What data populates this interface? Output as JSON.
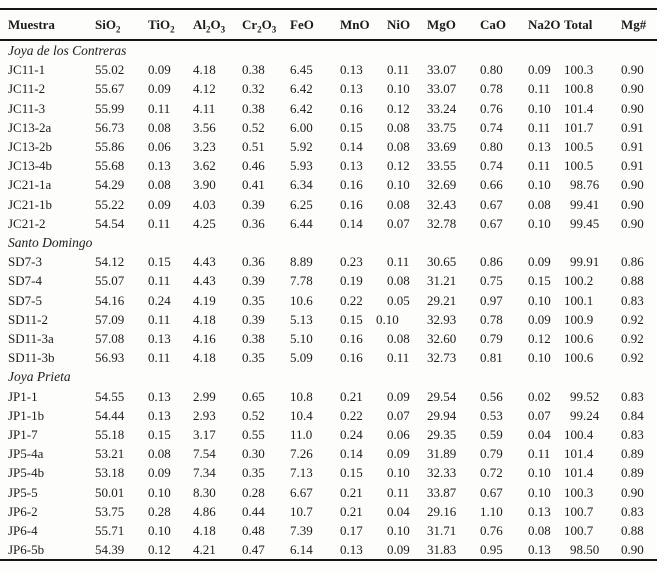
{
  "table": {
    "columns": [
      "Muestra",
      "SiO~2~",
      "TiO~2~",
      "Al~2~O~3~",
      "Cr~2~O~3~",
      "FeO",
      "MnO",
      "NiO",
      "MgO",
      "CaO",
      "Na2O",
      "Total",
      "Mg#"
    ],
    "groups": [
      {
        "label": "Joya de los Contreras",
        "rows": [
          {
            "id": "JC11-1",
            "values": [
              "55.02",
              "0.09",
              "4.18",
              "0.38",
              "6.45",
              "0.13",
              "0.11",
              "33.07",
              "0.80",
              "0.09",
              "100.3",
              "0.90"
            ]
          },
          {
            "id": "JC11-2",
            "values": [
              "55.67",
              "0.09",
              "4.12",
              "0.32",
              "6.42",
              "0.13",
              "0.10",
              "33.07",
              "0.78",
              "0.11",
              "100.8",
              "0.90"
            ]
          },
          {
            "id": "JC11-3",
            "values": [
              "55.99",
              "0.11",
              "4.11",
              "0.38",
              "6.42",
              "0.16",
              "0.12",
              "33.24",
              "0.76",
              "0.10",
              "101.4",
              "0.90"
            ]
          },
          {
            "id": "JC13-2a",
            "values": [
              "56.73",
              "0.08",
              "3.56",
              "0.52",
              "6.00",
              "0.15",
              "0.08",
              "33.75",
              "0.74",
              "0.11",
              "101.7",
              "0.91"
            ]
          },
          {
            "id": "JC13-2b",
            "values": [
              "55.86",
              "0.06",
              "3.23",
              "0.51",
              "5.92",
              "0.14",
              "0.08",
              "33.69",
              "0.80",
              "0.13",
              "100.5",
              "0.91"
            ]
          },
          {
            "id": "JC13-4b",
            "values": [
              "55.68",
              "0.13",
              "3.62",
              "0.46",
              "5.93",
              "0.13",
              "0.12",
              "33.55",
              "0.74",
              "0.11",
              "100.5",
              "0.91"
            ]
          },
          {
            "id": "JC21-1a",
            "values": [
              "54.29",
              "0.08",
              "3.90",
              "0.41",
              "6.34",
              "0.16",
              "0.10",
              "32.69",
              "0.66",
              "0.10",
              "98.76",
              "0.90"
            ]
          },
          {
            "id": "JC21-1b",
            "values": [
              "55.22",
              "0.09",
              "4.03",
              "0.39",
              "6.25",
              "0.16",
              "0.08",
              "32.43",
              "0.67",
              "0.08",
              "99.41",
              "0.90"
            ]
          },
          {
            "id": "JC21-2",
            "values": [
              "54.54",
              "0.11",
              "4.25",
              "0.36",
              "6.44",
              "0.14",
              "0.07",
              "32.78",
              "0.67",
              "0.10",
              "99.45",
              "0.90"
            ]
          }
        ]
      },
      {
        "label": "Santo Domingo",
        "rows": [
          {
            "id": "SD7-3",
            "values": [
              "54.12",
              "0.15",
              "4.43",
              "0.36",
              "8.89",
              "0.23",
              "0.11",
              "30.65",
              "0.86",
              "0.09",
              "99.91",
              "0.86"
            ]
          },
          {
            "id": "SD7-4",
            "values": [
              "55.07",
              "0.11",
              "4.43",
              "0.39",
              "7.78",
              "0.19",
              "0.08",
              "31.21",
              "0.75",
              "0.15",
              "100.2",
              "0.88"
            ]
          },
          {
            "id": "SD7-5",
            "values": [
              "54.16",
              "0.24",
              "4.19",
              "0.35",
              "10.6",
              "0.22",
              "0.05",
              "29.21",
              "0.97",
              "0.10",
              "100.1",
              "0.83"
            ]
          },
          {
            "id": "SD11-2",
            "values": [
              "57.09",
              "0.11",
              "4.18",
              "0.39",
              "5.13",
              "0.15",
              "0.10",
              "32.93",
              "0.78",
              "0.09",
              "100.9",
              "0.92"
            ]
          },
          {
            "id": "SD11-3a",
            "values": [
              "57.08",
              "0.13",
              "4.16",
              "0.38",
              "5.10",
              "0.16",
              "0.08",
              "32.60",
              "0.79",
              "0.12",
              "100.6",
              "0.92"
            ]
          },
          {
            "id": "SD11-3b",
            "values": [
              "56.93",
              "0.11",
              "4.18",
              "0.35",
              "5.09",
              "0.16",
              "0.11",
              "32.73",
              "0.81",
              "0.10",
              "100.6",
              "0.92"
            ]
          }
        ]
      },
      {
        "label": "Joya Prieta",
        "rows": [
          {
            "id": "JP1-1",
            "values": [
              "54.55",
              "0.13",
              "2.99",
              "0.65",
              "10.8",
              "0.21",
              "0.09",
              "29.54",
              "0.56",
              "0.02",
              "99.52",
              "0.83"
            ]
          },
          {
            "id": "JP1-1b",
            "values": [
              "54.44",
              "0.13",
              "2.93",
              "0.52",
              "10.4",
              "0.22",
              "0.07",
              "29.94",
              "0.53",
              "0.07",
              "99.24",
              "0.84"
            ]
          },
          {
            "id": "JP1-7",
            "values": [
              "55.18",
              "0.15",
              "3.17",
              "0.55",
              "11.0",
              "0.24",
              "0.06",
              "29.35",
              "0.59",
              "0.04",
              "100.4",
              "0.83"
            ]
          },
          {
            "id": "JP5-4a",
            "values": [
              "53.21",
              "0.08",
              "7.54",
              "0.30",
              "7.26",
              "0.14",
              "0.09",
              "31.89",
              "0.79",
              "0.11",
              "101.4",
              "0.89"
            ]
          },
          {
            "id": "JP5-4b",
            "values": [
              "53.18",
              "0.09",
              "7.34",
              "0.35",
              "7.13",
              "0.15",
              "0.10",
              "32.33",
              "0.72",
              "0.10",
              "101.4",
              "0.89"
            ]
          },
          {
            "id": "JP5-5",
            "values": [
              "50.01",
              "0.10",
              "8.30",
              "0.28",
              "6.67",
              "0.21",
              "0.11",
              "33.87",
              "0.67",
              "0.10",
              "100.3",
              "0.90"
            ]
          },
          {
            "id": "JP6-2",
            "values": [
              "53.75",
              "0.28",
              "4.86",
              "0.44",
              "10.7",
              "0.21",
              "0.04",
              "29.16",
              "1.10",
              "0.13",
              "100.7",
              "0.83"
            ]
          },
          {
            "id": "JP6-4",
            "values": [
              "55.71",
              "0.10",
              "4.18",
              "0.48",
              "7.39",
              "0.17",
              "0.10",
              "31.71",
              "0.76",
              "0.08",
              "100.7",
              "0.88"
            ]
          },
          {
            "id": "JP6-5b",
            "values": [
              "54.39",
              "0.12",
              "4.21",
              "0.47",
              "6.14",
              "0.13",
              "0.09",
              "31.83",
              "0.95",
              "0.13",
              "98.50",
              "0.90"
            ]
          }
        ]
      }
    ]
  },
  "colors": {
    "background": "#fdfdfc",
    "text": "#1c1c1c",
    "rule": "#141414"
  }
}
